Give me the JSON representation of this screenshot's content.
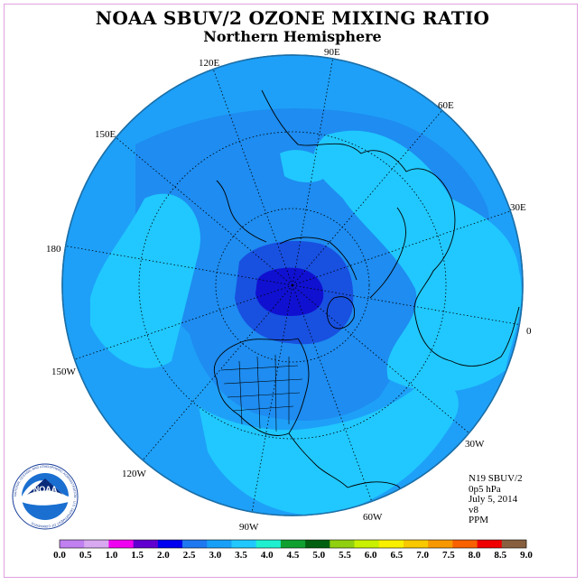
{
  "title": "NOAA SBUV/2 OZONE MIXING RATIO",
  "subtitle": "Northern Hemisphere",
  "longitude_labels": [
    {
      "id": "lon-90e",
      "text": "90E"
    },
    {
      "id": "lon-60e",
      "text": "60E"
    },
    {
      "id": "lon-120e",
      "text": "120E"
    },
    {
      "id": "lon-150e",
      "text": "150E"
    },
    {
      "id": "lon-30e",
      "text": "30E"
    },
    {
      "id": "lon-180",
      "text": "180"
    },
    {
      "id": "lon-0",
      "text": "0"
    },
    {
      "id": "lon-150w",
      "text": "150W"
    },
    {
      "id": "lon-30w",
      "text": "30W"
    },
    {
      "id": "lon-120w",
      "text": "120W"
    },
    {
      "id": "lon-60w",
      "text": "60W"
    },
    {
      "id": "lon-90w",
      "text": "90W"
    }
  ],
  "info": {
    "instrument": "N19 SBUV/2",
    "level": "0p5 hPa",
    "date": "July 5, 2014",
    "version": "v8",
    "units": "PPM"
  },
  "logo": {
    "text": "NOAA",
    "ring_text": "NATIONAL OCEANIC AND ATMOSPHERIC ADMINISTRATION · U.S. DEPARTMENT OF COMMERCE"
  },
  "colorbar": {
    "ticks": [
      "0.0",
      "0.5",
      "1.0",
      "1.5",
      "2.0",
      "2.5",
      "3.0",
      "3.5",
      "4.0",
      "4.5",
      "5.0",
      "5.5",
      "6.0",
      "6.5",
      "7.0",
      "7.5",
      "8.0",
      "8.5",
      "9.0"
    ],
    "colors": [
      "#c080f0",
      "#d8a8f0",
      "#f000f0",
      "#6000d0",
      "#0000f0",
      "#1e78f0",
      "#18a0f8",
      "#20c8ff",
      "#20f0d0",
      "#10a030",
      "#006010",
      "#90d010",
      "#c8f000",
      "#f8f000",
      "#f8c800",
      "#f89800",
      "#f86000",
      "#f00000",
      "#886040"
    ]
  },
  "map_colors": {
    "ocean_base": "#1ea0f8",
    "level_2_5": "#1e8cf0",
    "level_3_5": "#20c8ff",
    "level_1_5": "#1850e0",
    "level_1_0": "#1010d0",
    "coast": "#000000"
  }
}
